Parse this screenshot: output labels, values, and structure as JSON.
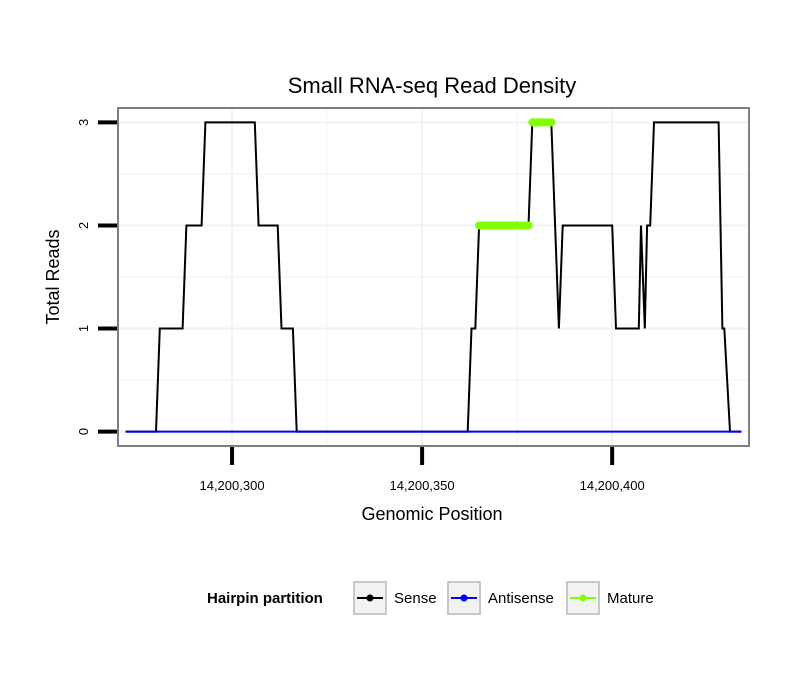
{
  "chart_data": {
    "type": "line",
    "title": "Small RNA-seq Read Density",
    "xlabel": "Genomic Position",
    "ylabel": "Total Reads",
    "xlim": [
      14200270,
      14200436
    ],
    "ylim": [
      -0.14,
      3.14
    ],
    "x_ticks": [
      {
        "value": 14200300,
        "label": "14,200,300"
      },
      {
        "value": 14200350,
        "label": "14,200,350"
      },
      {
        "value": 14200400,
        "label": "14,200,400"
      }
    ],
    "y_ticks": [
      {
        "value": 0,
        "label": "0"
      },
      {
        "value": 1,
        "label": "1"
      },
      {
        "value": 2,
        "label": "2"
      },
      {
        "value": 3,
        "label": "3"
      }
    ],
    "grid": true,
    "legend": {
      "title": "Hairpin partition",
      "position": "bottom",
      "entries": [
        "Sense",
        "Antisense",
        "Mature"
      ]
    },
    "series": [
      {
        "name": "Sense",
        "color": "#000000",
        "x": [
          14200272,
          14200280,
          14200281,
          14200287,
          14200288,
          14200292,
          14200293,
          14200306,
          14200307,
          14200312,
          14200313,
          14200316,
          14200317,
          14200362,
          14200363,
          14200364,
          14200365,
          14200378,
          14200379,
          14200380,
          14200381,
          14200384,
          14200385,
          14200386,
          14200387,
          14200387.5,
          14200400,
          14200401,
          14200406,
          14200407,
          14200407.6,
          14200408.6,
          14200409.2,
          14200410,
          14200410.5,
          14200411,
          14200428,
          14200429,
          14200429.5,
          14200431,
          14200434
        ],
        "y": [
          0,
          0,
          1,
          1,
          2,
          2,
          3,
          3,
          2,
          2,
          1,
          1,
          0,
          0,
          1,
          1,
          2,
          2,
          3,
          3,
          3,
          3,
          2,
          1,
          2,
          2,
          2,
          1,
          1,
          1,
          2,
          1,
          2,
          2,
          2.5,
          3,
          3,
          1,
          1,
          0,
          0
        ]
      },
      {
        "name": "Antisense",
        "color": "#0000ff",
        "x": [
          14200272,
          14200434
        ],
        "y": [
          0,
          0
        ]
      },
      {
        "name": "Mature",
        "color": "#7fff00",
        "segments": [
          {
            "x": [
              14200365,
              14200378
            ],
            "y": [
              2,
              2
            ]
          },
          {
            "x": [
              14200379,
              14200384
            ],
            "y": [
              3,
              3
            ]
          }
        ]
      }
    ]
  }
}
